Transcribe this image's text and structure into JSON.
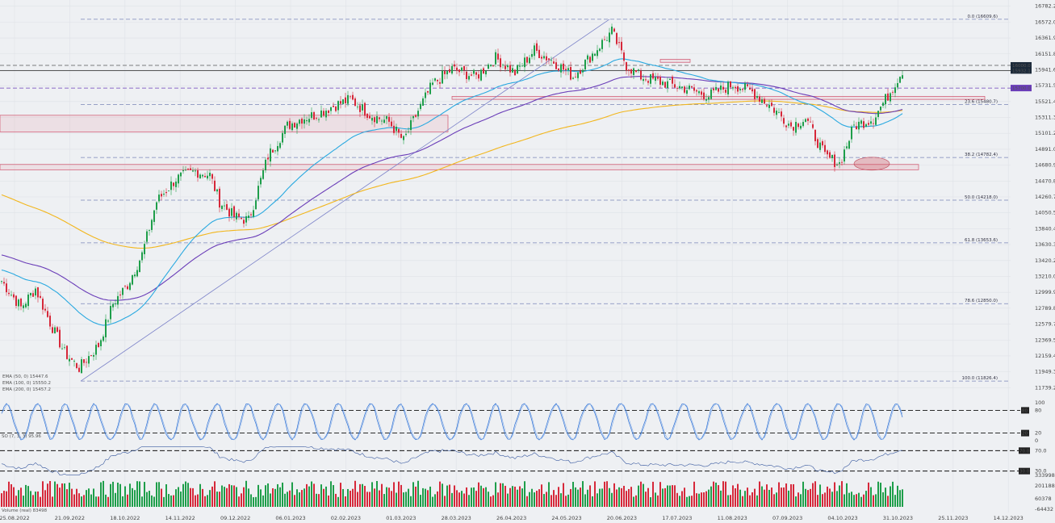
{
  "chart_data": {
    "type": "candlestick",
    "y_ticks": [
      "16782.2",
      "16572.0",
      "16361.9",
      "16151.8",
      "15941.6",
      "15731.5",
      "15521.4",
      "15311.3",
      "15101.2",
      "14891.0",
      "14680.9",
      "14470.8",
      "14260.7",
      "14050.5",
      "13840.4",
      "13630.3",
      "13420.2",
      "13210.0",
      "12999.9",
      "12789.8",
      "12579.7",
      "12369.5",
      "12159.4",
      "11949.3",
      "11739.2"
    ],
    "x_ticks": [
      "25.08.2022",
      "21.09.2022",
      "18.10.2022",
      "14.11.2022",
      "09.12.2022",
      "06.01.2023",
      "02.02.2023",
      "01.03.2023",
      "28.03.2023",
      "26.04.2023",
      "24.05.2023",
      "20.06.2023",
      "17.07.2023",
      "11.08.2023",
      "07.09.2023",
      "04.10.2023",
      "31.10.2023",
      "25.11.2023",
      "14.12.2023"
    ],
    "ylim": [
      11700,
      16800
    ],
    "fib_levels": [
      {
        "label": "0.0 (16609.6)",
        "value": 16609.6
      },
      {
        "label": "23.6 (15480.7)",
        "value": 15480.7
      },
      {
        "label": "38.2 (14782.4)",
        "value": 14782.4
      },
      {
        "label": "50.0 (14218.0)",
        "value": 14218.0
      },
      {
        "label": "61.8 (13653.6)",
        "value": 13653.6
      },
      {
        "label": "78.6 (12850.0)",
        "value": 12850.0
      },
      {
        "label": "100.0 (11826.4)",
        "value": 11826.4
      }
    ],
    "price_tags": [
      {
        "label": "16000.0",
        "value": 16000.0,
        "color": "#ffffff"
      },
      {
        "label": "15932.1",
        "value": 15932.1,
        "color": "#ffffff"
      },
      {
        "label": "15700.0",
        "value": 15700.0,
        "color": "#ffffff"
      }
    ],
    "legend": [
      "EMA (50, 0) 15447.6",
      "EMA (100, 0) 15550.2",
      "EMA (200, 0) 15457.2"
    ],
    "ema_colors": {
      "ema50": "#2aa9e0",
      "ema100": "#6a3db8",
      "ema200": "#f2b61c"
    },
    "bull_color": "#1e9e4a",
    "bear_color": "#d6283a",
    "close_anchors": [
      [
        0,
        13150
      ],
      [
        8,
        12800
      ],
      [
        14,
        13050
      ],
      [
        20,
        12600
      ],
      [
        26,
        12200
      ],
      [
        32,
        12000
      ],
      [
        40,
        12300
      ],
      [
        46,
        12850
      ],
      [
        52,
        13100
      ],
      [
        58,
        13500
      ],
      [
        64,
        14200
      ],
      [
        72,
        14500
      ],
      [
        80,
        14600
      ],
      [
        86,
        14550
      ],
      [
        90,
        14200
      ],
      [
        96,
        14000
      ],
      [
        102,
        13950
      ],
      [
        110,
        14800
      ],
      [
        118,
        15200
      ],
      [
        124,
        15300
      ],
      [
        130,
        15350
      ],
      [
        136,
        15450
      ],
      [
        144,
        15550
      ],
      [
        152,
        15350
      ],
      [
        160,
        15250
      ],
      [
        166,
        15000
      ],
      [
        172,
        15400
      ],
      [
        178,
        15750
      ],
      [
        186,
        15950
      ],
      [
        196,
        15850
      ],
      [
        204,
        16100
      ],
      [
        212,
        15900
      ],
      [
        220,
        16200
      ],
      [
        228,
        16050
      ],
      [
        236,
        15850
      ],
      [
        244,
        16150
      ],
      [
        252,
        16450
      ],
      [
        258,
        16000
      ],
      [
        264,
        15850
      ],
      [
        272,
        15780
      ],
      [
        282,
        15700
      ],
      [
        292,
        15600
      ],
      [
        302,
        15750
      ],
      [
        310,
        15650
      ],
      [
        318,
        15450
      ],
      [
        326,
        15200
      ],
      [
        332,
        15300
      ],
      [
        340,
        14800
      ],
      [
        346,
        14700
      ],
      [
        352,
        15200
      ],
      [
        360,
        15300
      ],
      [
        366,
        15600
      ],
      [
        372,
        15932
      ]
    ],
    "oscillator": {
      "name": "SO (7, 3, 3) 95.96",
      "levels": [
        80,
        20
      ],
      "axis": [
        "100",
        "80",
        "20",
        "0"
      ]
    },
    "rsi": {
      "levels": [
        "70.0",
        "30.0"
      ],
      "axis": [
        "70.0",
        "30.0"
      ]
    },
    "volume": {
      "label": "Volume (real) 83498",
      "axis": [
        "333998",
        "201188",
        "60378",
        "-64432"
      ]
    }
  }
}
